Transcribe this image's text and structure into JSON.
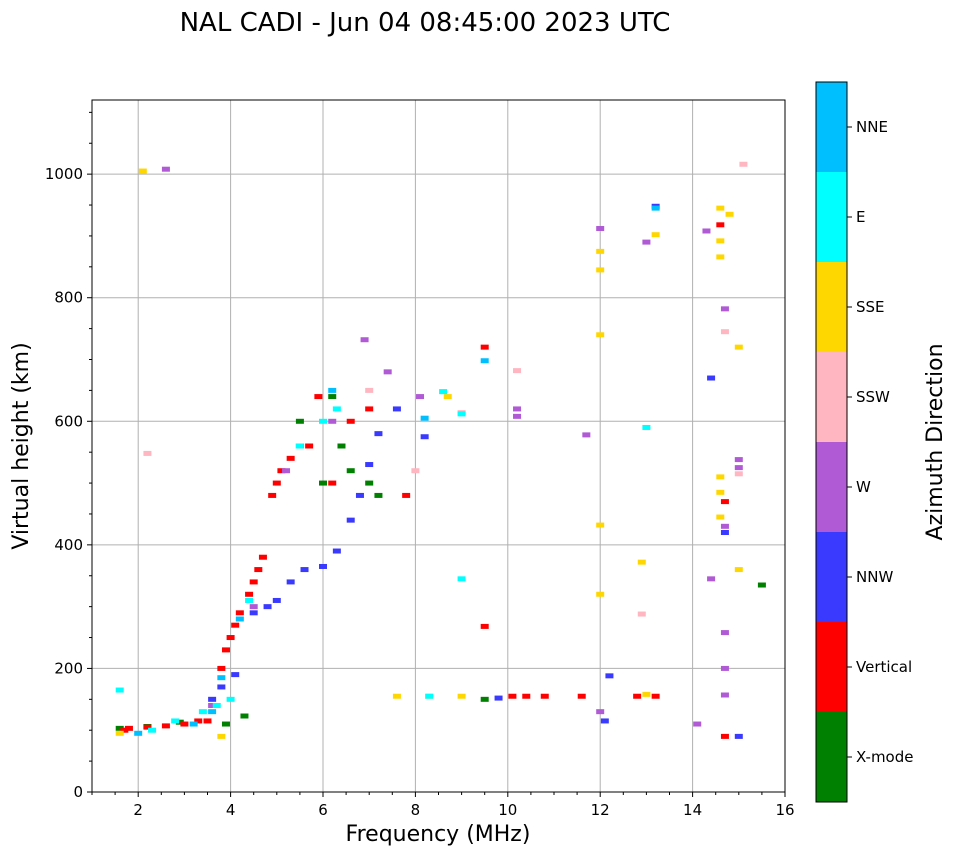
{
  "chart_data": {
    "type": "scatter",
    "title": "NAL CADI - Jun 04 08:45:00 2023 UTC",
    "xlabel": "Frequency (MHz)",
    "ylabel": "Virtual height (km)",
    "xlim": [
      1,
      16
    ],
    "ylim": [
      0,
      1120
    ],
    "xticks": [
      2,
      4,
      6,
      8,
      10,
      12,
      14,
      16
    ],
    "xtick_labels": [
      "2",
      "4",
      "6",
      "8",
      "10",
      "12",
      "14",
      "16"
    ],
    "yticks": [
      0,
      200,
      400,
      600,
      800,
      1000
    ],
    "ytick_labels": [
      "0",
      "200",
      "400",
      "600",
      "800",
      "1000"
    ],
    "grid": true,
    "colorbar": {
      "title": "Azimuth Direction",
      "categories": [
        "X-mode",
        "Vertical",
        "NNW",
        "W",
        "SSW",
        "SSE",
        "E",
        "NNE"
      ],
      "colors": [
        "#008000",
        "#ff0000",
        "#3a3aff",
        "#b05ad6",
        "#ffb6c1",
        "#ffd700",
        "#00ffff",
        "#00bfff"
      ]
    },
    "series": [
      {
        "name": "X-mode",
        "points": [
          [
            1.6,
            103
          ],
          [
            2.2,
            106
          ],
          [
            2.9,
            113
          ],
          [
            3.9,
            110
          ],
          [
            4.3,
            123
          ],
          [
            5.5,
            600
          ],
          [
            6.0,
            500
          ],
          [
            6.2,
            640
          ],
          [
            6.4,
            560
          ],
          [
            6.6,
            520
          ],
          [
            7.0,
            500
          ],
          [
            7.2,
            480
          ],
          [
            9.5,
            150
          ],
          [
            15.5,
            335
          ]
        ]
      },
      {
        "name": "Vertical",
        "points": [
          [
            1.7,
            100
          ],
          [
            1.8,
            103
          ],
          [
            2.2,
            105
          ],
          [
            2.6,
            107
          ],
          [
            3.0,
            110
          ],
          [
            3.3,
            115
          ],
          [
            3.5,
            115
          ],
          [
            3.8,
            200
          ],
          [
            3.9,
            230
          ],
          [
            4.0,
            250
          ],
          [
            4.1,
            270
          ],
          [
            4.2,
            290
          ],
          [
            4.4,
            320
          ],
          [
            4.5,
            340
          ],
          [
            4.6,
            360
          ],
          [
            4.7,
            380
          ],
          [
            4.9,
            480
          ],
          [
            5.0,
            500
          ],
          [
            5.1,
            520
          ],
          [
            5.3,
            540
          ],
          [
            5.5,
            560
          ],
          [
            5.7,
            560
          ],
          [
            5.9,
            640
          ],
          [
            6.2,
            500
          ],
          [
            6.6,
            600
          ],
          [
            7.0,
            620
          ],
          [
            7.8,
            480
          ],
          [
            9.5,
            268
          ],
          [
            9.5,
            720
          ],
          [
            10.1,
            155
          ],
          [
            10.4,
            155
          ],
          [
            10.8,
            155
          ],
          [
            11.6,
            155
          ],
          [
            12.8,
            155
          ],
          [
            13.2,
            155
          ],
          [
            14.6,
            918
          ],
          [
            14.7,
            470
          ],
          [
            14.7,
            90
          ]
        ]
      },
      {
        "name": "NNW",
        "points": [
          [
            3.6,
            150
          ],
          [
            3.8,
            170
          ],
          [
            4.1,
            190
          ],
          [
            4.5,
            290
          ],
          [
            4.8,
            300
          ],
          [
            5.0,
            310
          ],
          [
            5.3,
            340
          ],
          [
            5.6,
            360
          ],
          [
            6.0,
            365
          ],
          [
            6.3,
            390
          ],
          [
            6.6,
            440
          ],
          [
            6.8,
            480
          ],
          [
            7.0,
            530
          ],
          [
            7.2,
            580
          ],
          [
            7.6,
            620
          ],
          [
            8.2,
            575
          ],
          [
            9.8,
            152
          ],
          [
            12.1,
            115
          ],
          [
            12.2,
            188
          ],
          [
            13.2,
            948
          ],
          [
            14.4,
            670
          ],
          [
            14.7,
            420
          ],
          [
            15.0,
            90
          ]
        ]
      },
      {
        "name": "W",
        "points": [
          [
            2.6,
            1008
          ],
          [
            3.6,
            140
          ],
          [
            4.5,
            300
          ],
          [
            5.2,
            520
          ],
          [
            6.2,
            600
          ],
          [
            6.9,
            732
          ],
          [
            7.4,
            680
          ],
          [
            8.1,
            640
          ],
          [
            10.2,
            620
          ],
          [
            10.2,
            608
          ],
          [
            11.7,
            578
          ],
          [
            12.0,
            912
          ],
          [
            12.0,
            130
          ],
          [
            13.0,
            890
          ],
          [
            14.1,
            110
          ],
          [
            14.3,
            908
          ],
          [
            14.4,
            345
          ],
          [
            14.7,
            782
          ],
          [
            14.7,
            430
          ],
          [
            14.7,
            258
          ],
          [
            14.7,
            200
          ],
          [
            14.7,
            157
          ],
          [
            15.0,
            538
          ],
          [
            15.0,
            525
          ]
        ]
      },
      {
        "name": "SSW",
        "points": [
          [
            2.2,
            548
          ],
          [
            7.0,
            650
          ],
          [
            8.0,
            520
          ],
          [
            9.0,
            614
          ],
          [
            10.2,
            682
          ],
          [
            12.9,
            288
          ],
          [
            14.7,
            745
          ],
          [
            15.1,
            1016
          ],
          [
            15.0,
            515
          ]
        ]
      },
      {
        "name": "SSE",
        "points": [
          [
            1.6,
            95
          ],
          [
            2.1,
            1005
          ],
          [
            3.8,
            90
          ],
          [
            7.6,
            155
          ],
          [
            8.3,
            155
          ],
          [
            8.7,
            640
          ],
          [
            9.0,
            155
          ],
          [
            12.0,
            875
          ],
          [
            12.0,
            845
          ],
          [
            12.0,
            740
          ],
          [
            12.0,
            432
          ],
          [
            12.0,
            320
          ],
          [
            12.9,
            372
          ],
          [
            13.0,
            158
          ],
          [
            13.2,
            902
          ],
          [
            14.6,
            945
          ],
          [
            14.6,
            892
          ],
          [
            14.6,
            866
          ],
          [
            14.6,
            510
          ],
          [
            14.6,
            485
          ],
          [
            14.6,
            445
          ],
          [
            14.8,
            935
          ],
          [
            15.0,
            720
          ],
          [
            15.0,
            360
          ]
        ]
      },
      {
        "name": "E",
        "points": [
          [
            1.6,
            165
          ],
          [
            2.3,
            100
          ],
          [
            2.8,
            115
          ],
          [
            3.4,
            130
          ],
          [
            3.7,
            140
          ],
          [
            4.0,
            150
          ],
          [
            4.4,
            310
          ],
          [
            5.5,
            560
          ],
          [
            6.0,
            600
          ],
          [
            6.3,
            620
          ],
          [
            8.3,
            155
          ],
          [
            8.6,
            648
          ],
          [
            9.0,
            345
          ],
          [
            9.0,
            612
          ],
          [
            13.0,
            590
          ]
        ]
      },
      {
        "name": "NNE",
        "points": [
          [
            2.0,
            95
          ],
          [
            3.2,
            110
          ],
          [
            3.6,
            130
          ],
          [
            3.8,
            185
          ],
          [
            4.2,
            280
          ],
          [
            6.2,
            650
          ],
          [
            8.2,
            605
          ],
          [
            9.5,
            698
          ],
          [
            13.2,
            945
          ]
        ]
      }
    ]
  }
}
